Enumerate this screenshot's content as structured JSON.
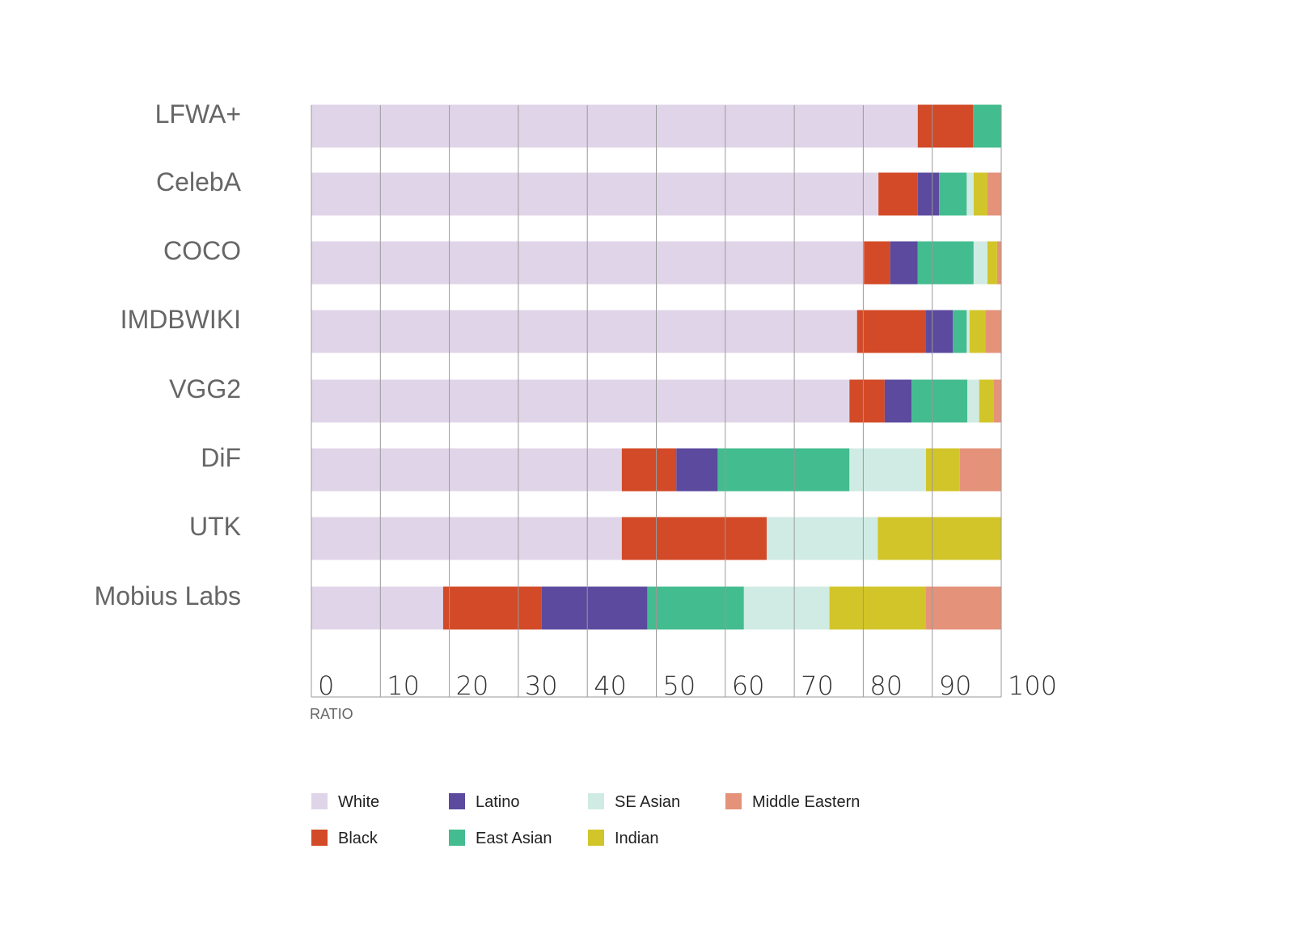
{
  "chart_data": {
    "type": "bar",
    "orientation": "horizontal",
    "stacked": true,
    "title": "",
    "xlabel": "RATIO",
    "ylabel": "",
    "xlim": [
      0,
      100
    ],
    "xticks": [
      "0",
      "10",
      "20",
      "30",
      "40",
      "50",
      "60",
      "70",
      "80",
      "90",
      "100"
    ],
    "grid": true,
    "legend_position": "bottom",
    "categories": [
      "LFWA+",
      "CelebA",
      "COCO",
      "IMDBWIKI",
      "VGG2",
      "DiF",
      "UTK",
      "Mobius Labs"
    ],
    "series": [
      {
        "name": "White",
        "color": "#e0d5e8",
        "values": [
          87.9,
          82.2,
          80.1,
          79.1,
          78.0,
          45.0,
          45.0,
          19.1
        ]
      },
      {
        "name": "Black",
        "color": "#d24a27",
        "values": [
          8.0,
          5.7,
          3.8,
          10.0,
          5.1,
          7.9,
          21.0,
          14.3
        ]
      },
      {
        "name": "Latino",
        "color": "#5b4a9e",
        "values": [
          0,
          3.1,
          4.0,
          3.9,
          3.9,
          6.0,
          0,
          15.3
        ]
      },
      {
        "name": "East Asian",
        "color": "#43bc8f",
        "values": [
          4.1,
          4.0,
          8.1,
          2.0,
          8.1,
          19.1,
          0,
          14.0
        ]
      },
      {
        "name": "SE Asian",
        "color": "#d0ebe4",
        "values": [
          0,
          1.0,
          2.0,
          0.4,
          1.7,
          11.1,
          16.1,
          12.4
        ]
      },
      {
        "name": "Indian",
        "color": "#d2c52a",
        "values": [
          0,
          2.0,
          1.4,
          2.3,
          2.1,
          4.9,
          17.9,
          14.0
        ]
      },
      {
        "name": "Middle Eastern",
        "color": "#e4927a",
        "values": [
          0,
          2.0,
          0.6,
          2.3,
          1.1,
          6.0,
          0,
          10.9
        ]
      }
    ]
  }
}
